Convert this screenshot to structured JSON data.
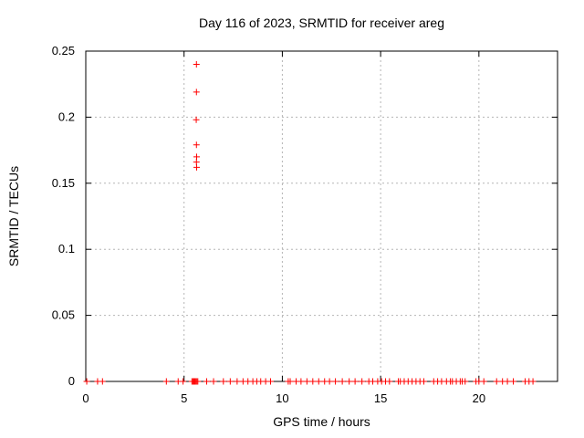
{
  "chart_data": {
    "type": "scatter",
    "title": "Day 116 of 2023, SRMTID for receiver areg",
    "xlabel": "GPS time / hours",
    "ylabel": "SRMTID / TECUs",
    "xlim": [
      0,
      24
    ],
    "ylim": [
      0,
      0.25
    ],
    "xticks": [
      0,
      5,
      10,
      15,
      20
    ],
    "yticks": [
      0,
      0.05,
      0.1,
      0.15,
      0.2,
      0.25
    ],
    "xtick_labels": [
      "0",
      "5",
      "10",
      "15",
      "20"
    ],
    "ytick_labels": [
      "0",
      "0.05",
      "0.1",
      "0.15",
      "0.2",
      "0.25"
    ],
    "grid": true,
    "legend": "none",
    "marker": "plus",
    "colors": {
      "marker": "#ff0000",
      "axis": "#000000",
      "grid": "#b5b5b5",
      "background": "#ffffff",
      "text": "#000000"
    },
    "series": [
      {
        "name": "SRMTID",
        "points": [
          [
            5.63,
            0.24
          ],
          [
            5.63,
            0.219
          ],
          [
            5.62,
            0.198
          ],
          [
            5.63,
            0.179
          ],
          [
            5.64,
            0.17
          ],
          [
            5.63,
            0.166
          ],
          [
            5.64,
            0.162
          ],
          [
            0.05,
            0
          ],
          [
            0.6,
            0
          ],
          [
            0.85,
            0
          ],
          [
            4.1,
            0
          ],
          [
            4.7,
            0
          ],
          [
            4.95,
            0
          ],
          [
            5.4,
            0
          ],
          [
            5.45,
            0
          ],
          [
            5.5,
            0
          ],
          [
            5.55,
            0
          ],
          [
            5.6,
            0
          ],
          [
            5.65,
            0
          ],
          [
            5.7,
            0
          ],
          [
            6.15,
            0
          ],
          [
            6.5,
            0
          ],
          [
            7.0,
            0
          ],
          [
            7.35,
            0
          ],
          [
            7.7,
            0
          ],
          [
            8.0,
            0
          ],
          [
            8.25,
            0
          ],
          [
            8.5,
            0
          ],
          [
            8.7,
            0
          ],
          [
            8.9,
            0
          ],
          [
            9.15,
            0
          ],
          [
            9.4,
            0
          ],
          [
            10.3,
            0
          ],
          [
            10.4,
            0
          ],
          [
            10.7,
            0
          ],
          [
            10.95,
            0
          ],
          [
            11.25,
            0
          ],
          [
            11.55,
            0
          ],
          [
            11.85,
            0
          ],
          [
            12.15,
            0
          ],
          [
            12.4,
            0
          ],
          [
            12.7,
            0
          ],
          [
            13.05,
            0
          ],
          [
            13.4,
            0
          ],
          [
            13.7,
            0
          ],
          [
            14.05,
            0
          ],
          [
            14.4,
            0
          ],
          [
            14.6,
            0
          ],
          [
            14.85,
            0
          ],
          [
            15.05,
            0
          ],
          [
            15.25,
            0
          ],
          [
            15.45,
            0
          ],
          [
            15.9,
            0
          ],
          [
            16.0,
            0
          ],
          [
            16.2,
            0
          ],
          [
            16.4,
            0
          ],
          [
            16.6,
            0
          ],
          [
            16.8,
            0
          ],
          [
            17.0,
            0
          ],
          [
            17.2,
            0
          ],
          [
            17.7,
            0
          ],
          [
            17.9,
            0
          ],
          [
            18.1,
            0
          ],
          [
            18.35,
            0
          ],
          [
            18.55,
            0
          ],
          [
            18.65,
            0
          ],
          [
            18.85,
            0
          ],
          [
            19.05,
            0
          ],
          [
            19.15,
            0
          ],
          [
            19.3,
            0
          ],
          [
            19.85,
            0
          ],
          [
            20.0,
            0
          ],
          [
            20.25,
            0
          ],
          [
            20.9,
            0
          ],
          [
            21.2,
            0
          ],
          [
            21.45,
            0
          ],
          [
            21.75,
            0
          ],
          [
            22.35,
            0
          ],
          [
            22.55,
            0
          ],
          [
            22.75,
            0
          ]
        ]
      }
    ]
  }
}
